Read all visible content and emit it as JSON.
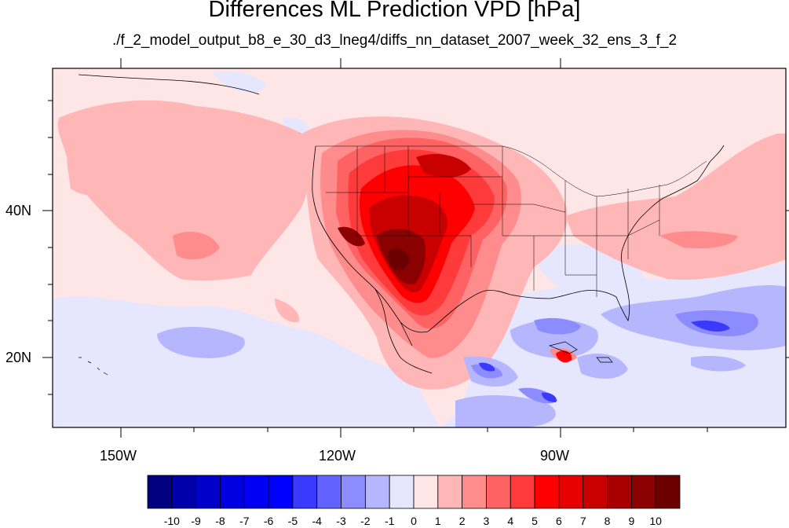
{
  "title": "Differences ML Prediction VPD [hPa]",
  "subtitle": "./f_2_model_output_b8_e_30_d3_lneg4/diffs_nn_dataset_2007_week_32_ens_3_f_2",
  "axes": {
    "lon_labels": [
      "150W",
      "120W",
      "90W"
    ],
    "lat_labels": [
      "40N",
      "20N"
    ]
  },
  "colorbar": {
    "labels": [
      "-10",
      "-9",
      "-8",
      "-7",
      "-6",
      "-5",
      "-4",
      "-3",
      "-2",
      "-1",
      "0",
      "1",
      "2",
      "3",
      "4",
      "5",
      "6",
      "7",
      "8",
      "9",
      "10"
    ],
    "colors": [
      "#000080",
      "#0000a8",
      "#0000c8",
      "#0000e0",
      "#0000f4",
      "#0000ff",
      "#3a3aff",
      "#6262ff",
      "#8c8cff",
      "#b6b6ff",
      "#e6e6ff",
      "#ffe6e6",
      "#ffb6b6",
      "#ff8c8c",
      "#ff6262",
      "#ff3a3a",
      "#ff0000",
      "#e60000",
      "#c80000",
      "#a80000",
      "#8b0000",
      "#6a0000"
    ]
  }
}
